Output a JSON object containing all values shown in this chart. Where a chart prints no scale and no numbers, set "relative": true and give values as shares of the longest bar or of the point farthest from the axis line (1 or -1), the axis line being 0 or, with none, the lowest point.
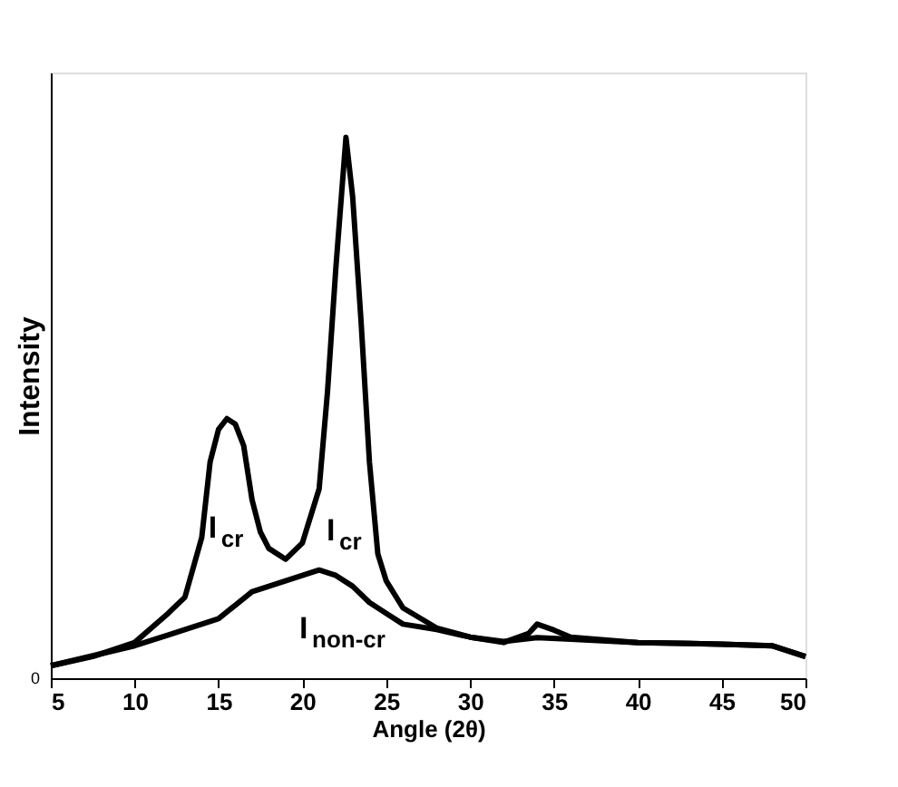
{
  "chart_data": {
    "type": "line",
    "xlabel": "Angle (2θ)",
    "ylabel": "Intensity",
    "relative": true,
    "xlim": [
      5,
      50
    ],
    "xticks": [
      5,
      10,
      15,
      20,
      25,
      30,
      35,
      40,
      45,
      50
    ],
    "series": [
      {
        "color": "#000000",
        "x": [
          5,
          7.5,
          10,
          12,
          13,
          14,
          14.5,
          15,
          15.5,
          16,
          16.5,
          17,
          17.5,
          18,
          19,
          20,
          21,
          21.5,
          22,
          22.6,
          23,
          23.5,
          24,
          24.5,
          25,
          26,
          28,
          30,
          32,
          33.5,
          34,
          35,
          36,
          40,
          45,
          48,
          50
        ],
        "values": [
          0.023,
          0.04,
          0.066,
          0.12,
          0.15,
          0.26,
          0.4,
          0.46,
          0.48,
          0.47,
          0.43,
          0.33,
          0.27,
          0.24,
          0.22,
          0.25,
          0.35,
          0.53,
          0.76,
          1.0,
          0.89,
          0.66,
          0.4,
          0.23,
          0.18,
          0.13,
          0.093,
          0.076,
          0.066,
          0.083,
          0.1,
          0.089,
          0.076,
          0.066,
          0.063,
          0.06,
          0.04
        ]
      },
      {
        "color": "#000000",
        "x": [
          5,
          10,
          12,
          15,
          17,
          19,
          20,
          21,
          22,
          23,
          24,
          25,
          26,
          28,
          30,
          32,
          34,
          36,
          40,
          45,
          48,
          50
        ],
        "values": [
          0.023,
          0.06,
          0.08,
          0.11,
          0.16,
          0.18,
          0.19,
          0.2,
          0.19,
          0.17,
          0.14,
          0.12,
          0.1,
          0.09,
          0.076,
          0.068,
          0.075,
          0.072,
          0.066,
          0.063,
          0.06,
          0.04
        ]
      }
    ],
    "line_style": "solid",
    "annotations": [
      "0",
      {
        "text": "I$_{cr}$",
        "x": 14.4,
        "y": 0.26
      },
      "I$_{cr}$",
      "I$_{non-cr}$"
    ]
  }
}
